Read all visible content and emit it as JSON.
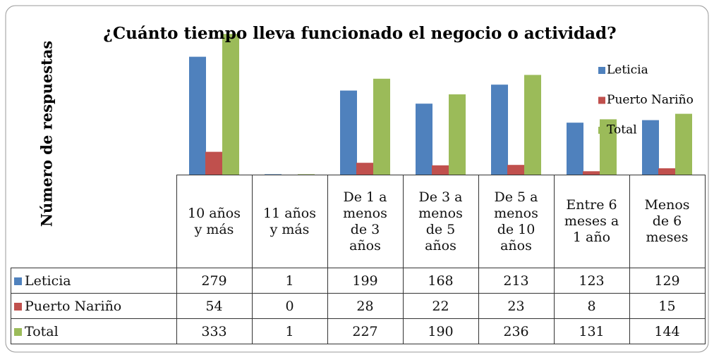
{
  "chart_data": {
    "type": "bar",
    "title": "¿Cuánto tiempo lleva funcionado el negocio o actividad?",
    "y_label": "Número de respuestas",
    "categories": [
      "10 años\ny más",
      "11 años\ny más",
      "De 1 a\nmenos\nde 3\naños",
      "De 3 a\nmenos\nde 5\naños",
      "De 5 a\nmenos\nde 10\naños",
      "Entre 6\nmeses a\n1 año",
      "Menos\nde 6\nmeses"
    ],
    "series": [
      {
        "name": "Leticia",
        "color": "#4f81bd",
        "values": [
          279,
          1,
          199,
          168,
          213,
          123,
          129
        ]
      },
      {
        "name": "Puerto Nariño",
        "color": "#c0504d",
        "values": [
          54,
          0,
          28,
          22,
          23,
          8,
          15
        ]
      },
      {
        "name": "Total",
        "color": "#9bbb59",
        "values": [
          333,
          1,
          227,
          190,
          236,
          131,
          144
        ]
      }
    ],
    "ylim": [
      0,
      350
    ],
    "legend": "right"
  }
}
